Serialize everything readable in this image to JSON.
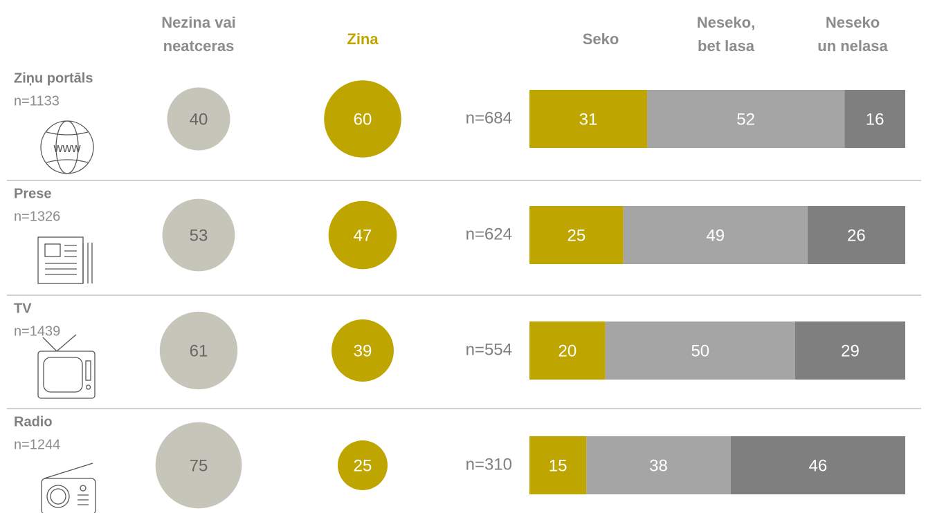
{
  "headers": [
    [
      "Nezina vai",
      "neatceras"
    ],
    [
      "Zina"
    ],
    [
      "Seko"
    ],
    [
      "Neseko,",
      "bet lasa"
    ],
    [
      "Neseko",
      "un nelasa"
    ]
  ],
  "colors": {
    "unknown": "#c6c5b9",
    "knows": "#bfa500",
    "segments": [
      "#bfa500",
      "#a5a5a5",
      "#7f7f7f"
    ]
  },
  "rows": [
    {
      "label": "Ziņu portāls",
      "n": "n=1133",
      "unknown": 40,
      "knows": 60,
      "bar_n": "n=684",
      "segments": [
        31,
        52,
        16
      ]
    },
    {
      "label": "Prese",
      "n": "n=1326",
      "unknown": 53,
      "knows": 47,
      "bar_n": "n=624",
      "segments": [
        25,
        49,
        26
      ]
    },
    {
      "label": "TV",
      "n": "n=1439",
      "unknown": 61,
      "knows": 39,
      "bar_n": "n=554",
      "segments": [
        20,
        50,
        29
      ]
    },
    {
      "label": "Radio",
      "n": "n=1244",
      "unknown": 75,
      "knows": 25,
      "bar_n": "n=310",
      "segments": [
        15,
        38,
        46
      ]
    }
  ]
}
